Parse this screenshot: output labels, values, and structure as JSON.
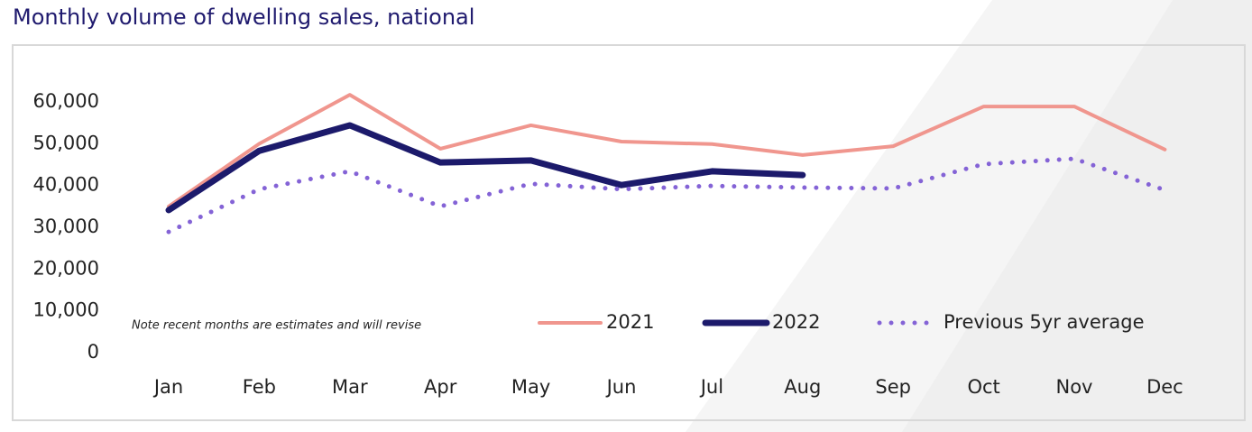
{
  "chart_data": {
    "type": "line",
    "title": "Monthly volume of dwelling sales, national",
    "annotation": "Note recent months are estimates and will revise",
    "categories": [
      "Jan",
      "Feb",
      "Mar",
      "Apr",
      "May",
      "Jun",
      "Jul",
      "Aug",
      "Sep",
      "Oct",
      "Nov",
      "Dec"
    ],
    "series": [
      {
        "name": "2021",
        "color": "#f0968e",
        "line_style": "solid",
        "line_width": 4,
        "values": [
          35000,
          50000,
          61700,
          48800,
          54400,
          50500,
          49900,
          47300,
          49400,
          58900,
          58900,
          48600
        ]
      },
      {
        "name": "2022",
        "color": "#1c1a6b",
        "line_style": "solid",
        "line_width": 7,
        "values": [
          34100,
          48300,
          54400,
          45500,
          46000,
          40100,
          43400,
          42500,
          null,
          null,
          null,
          null
        ]
      },
      {
        "name": "Previous 5yr average",
        "color": "#8463d6",
        "line_style": "dotted",
        "line_width": 5,
        "values": [
          28900,
          39100,
          43400,
          35000,
          40400,
          39100,
          39900,
          39500,
          39300,
          45100,
          46400,
          38900
        ]
      }
    ],
    "ylim": [
      0,
      60000
    ],
    "yticks": [
      0,
      {
        "value": 10000,
        "label": "10,000"
      },
      {
        "value": 20000,
        "label": "20,000"
      },
      {
        "value": 30000,
        "label": "30,000"
      },
      {
        "value": 40000,
        "label": "40,000"
      },
      {
        "value": 50000,
        "label": "50,000"
      },
      {
        "value": 60000,
        "label": "60,000"
      }
    ],
    "grid": false,
    "legend": "bottom-right"
  }
}
